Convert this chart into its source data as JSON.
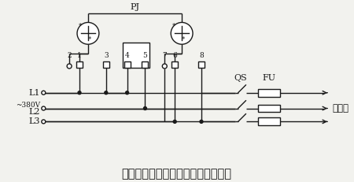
{
  "title": "三相三线有功电能表直入式接线电路",
  "pj_label": "PJ",
  "qs_label": "QS",
  "fu_label": "FU",
  "load_label": "接负载",
  "voltage_label": "~380V",
  "l1_label": "L1",
  "l2_label": "L2",
  "l3_label": "L3",
  "bg_color": "#f2f2ee",
  "line_color": "#1a1a1a",
  "title_fontsize": 10.5
}
